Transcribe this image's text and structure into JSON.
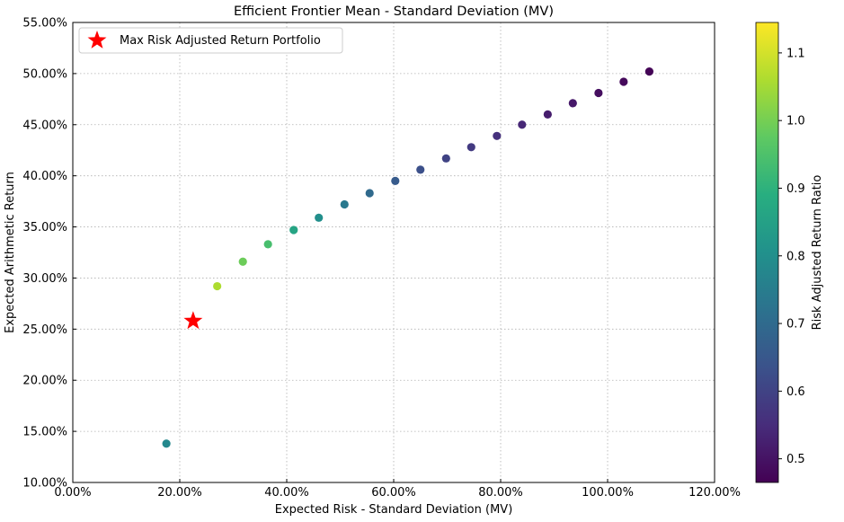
{
  "chart_data": {
    "type": "scatter",
    "title": "Efficient Frontier Mean - Standard Deviation (MV)",
    "xlabel": "Expected Risk - Standard Deviation (MV)",
    "ylabel": "Expected Arithmetic Return",
    "xlim": [
      0,
      1.2
    ],
    "ylim": [
      0.1,
      0.55
    ],
    "x_ticks": [
      0.0,
      0.2,
      0.4,
      0.6,
      0.8,
      1.0,
      1.2
    ],
    "x_tick_labels": [
      "0.00%",
      "20.00%",
      "40.00%",
      "60.00%",
      "80.00%",
      "100.00%",
      "120.00%"
    ],
    "y_ticks": [
      0.1,
      0.15,
      0.2,
      0.25,
      0.3,
      0.35,
      0.4,
      0.45,
      0.5,
      0.55
    ],
    "y_tick_labels": [
      "10.00%",
      "15.00%",
      "20.00%",
      "25.00%",
      "30.00%",
      "35.00%",
      "40.00%",
      "45.00%",
      "50.00%",
      "55.00%"
    ],
    "grid": true,
    "legend_placement": "top-left",
    "series": [
      {
        "kind": "frontier",
        "points": [
          {
            "x": 0.175,
            "y": 0.138,
            "c": 0.78
          },
          {
            "x": 0.27,
            "y": 0.292,
            "c": 1.06
          },
          {
            "x": 0.318,
            "y": 0.316,
            "c": 0.99
          },
          {
            "x": 0.365,
            "y": 0.333,
            "c": 0.94
          },
          {
            "x": 0.413,
            "y": 0.347,
            "c": 0.86
          },
          {
            "x": 0.46,
            "y": 0.359,
            "c": 0.8
          },
          {
            "x": 0.508,
            "y": 0.372,
            "c": 0.74
          },
          {
            "x": 0.555,
            "y": 0.383,
            "c": 0.7
          },
          {
            "x": 0.603,
            "y": 0.395,
            "c": 0.66
          },
          {
            "x": 0.65,
            "y": 0.406,
            "c": 0.63
          },
          {
            "x": 0.698,
            "y": 0.417,
            "c": 0.6
          },
          {
            "x": 0.745,
            "y": 0.428,
            "c": 0.58
          },
          {
            "x": 0.793,
            "y": 0.439,
            "c": 0.56
          },
          {
            "x": 0.84,
            "y": 0.45,
            "c": 0.54
          },
          {
            "x": 0.888,
            "y": 0.46,
            "c": 0.52
          },
          {
            "x": 0.935,
            "y": 0.471,
            "c": 0.51
          },
          {
            "x": 0.983,
            "y": 0.481,
            "c": 0.49
          },
          {
            "x": 1.03,
            "y": 0.492,
            "c": 0.48
          },
          {
            "x": 1.078,
            "y": 0.502,
            "c": 0.47
          }
        ]
      },
      {
        "kind": "highlight",
        "name": "Max Risk Adjusted Return Portfolio",
        "marker": "star",
        "color": "#ff0000",
        "points": [
          {
            "x": 0.225,
            "y": 0.258
          }
        ]
      }
    ],
    "colorbar": {
      "label": "Risk Adjusted Return Ratio",
      "colormap": "viridis",
      "range": [
        0.465,
        1.145
      ],
      "ticks": [
        0.5,
        0.6,
        0.7,
        0.8,
        0.9,
        1.0,
        1.1
      ],
      "tick_labels": [
        "0.5",
        "0.6",
        "0.7",
        "0.8",
        "0.9",
        "1.0",
        "1.1"
      ]
    }
  }
}
